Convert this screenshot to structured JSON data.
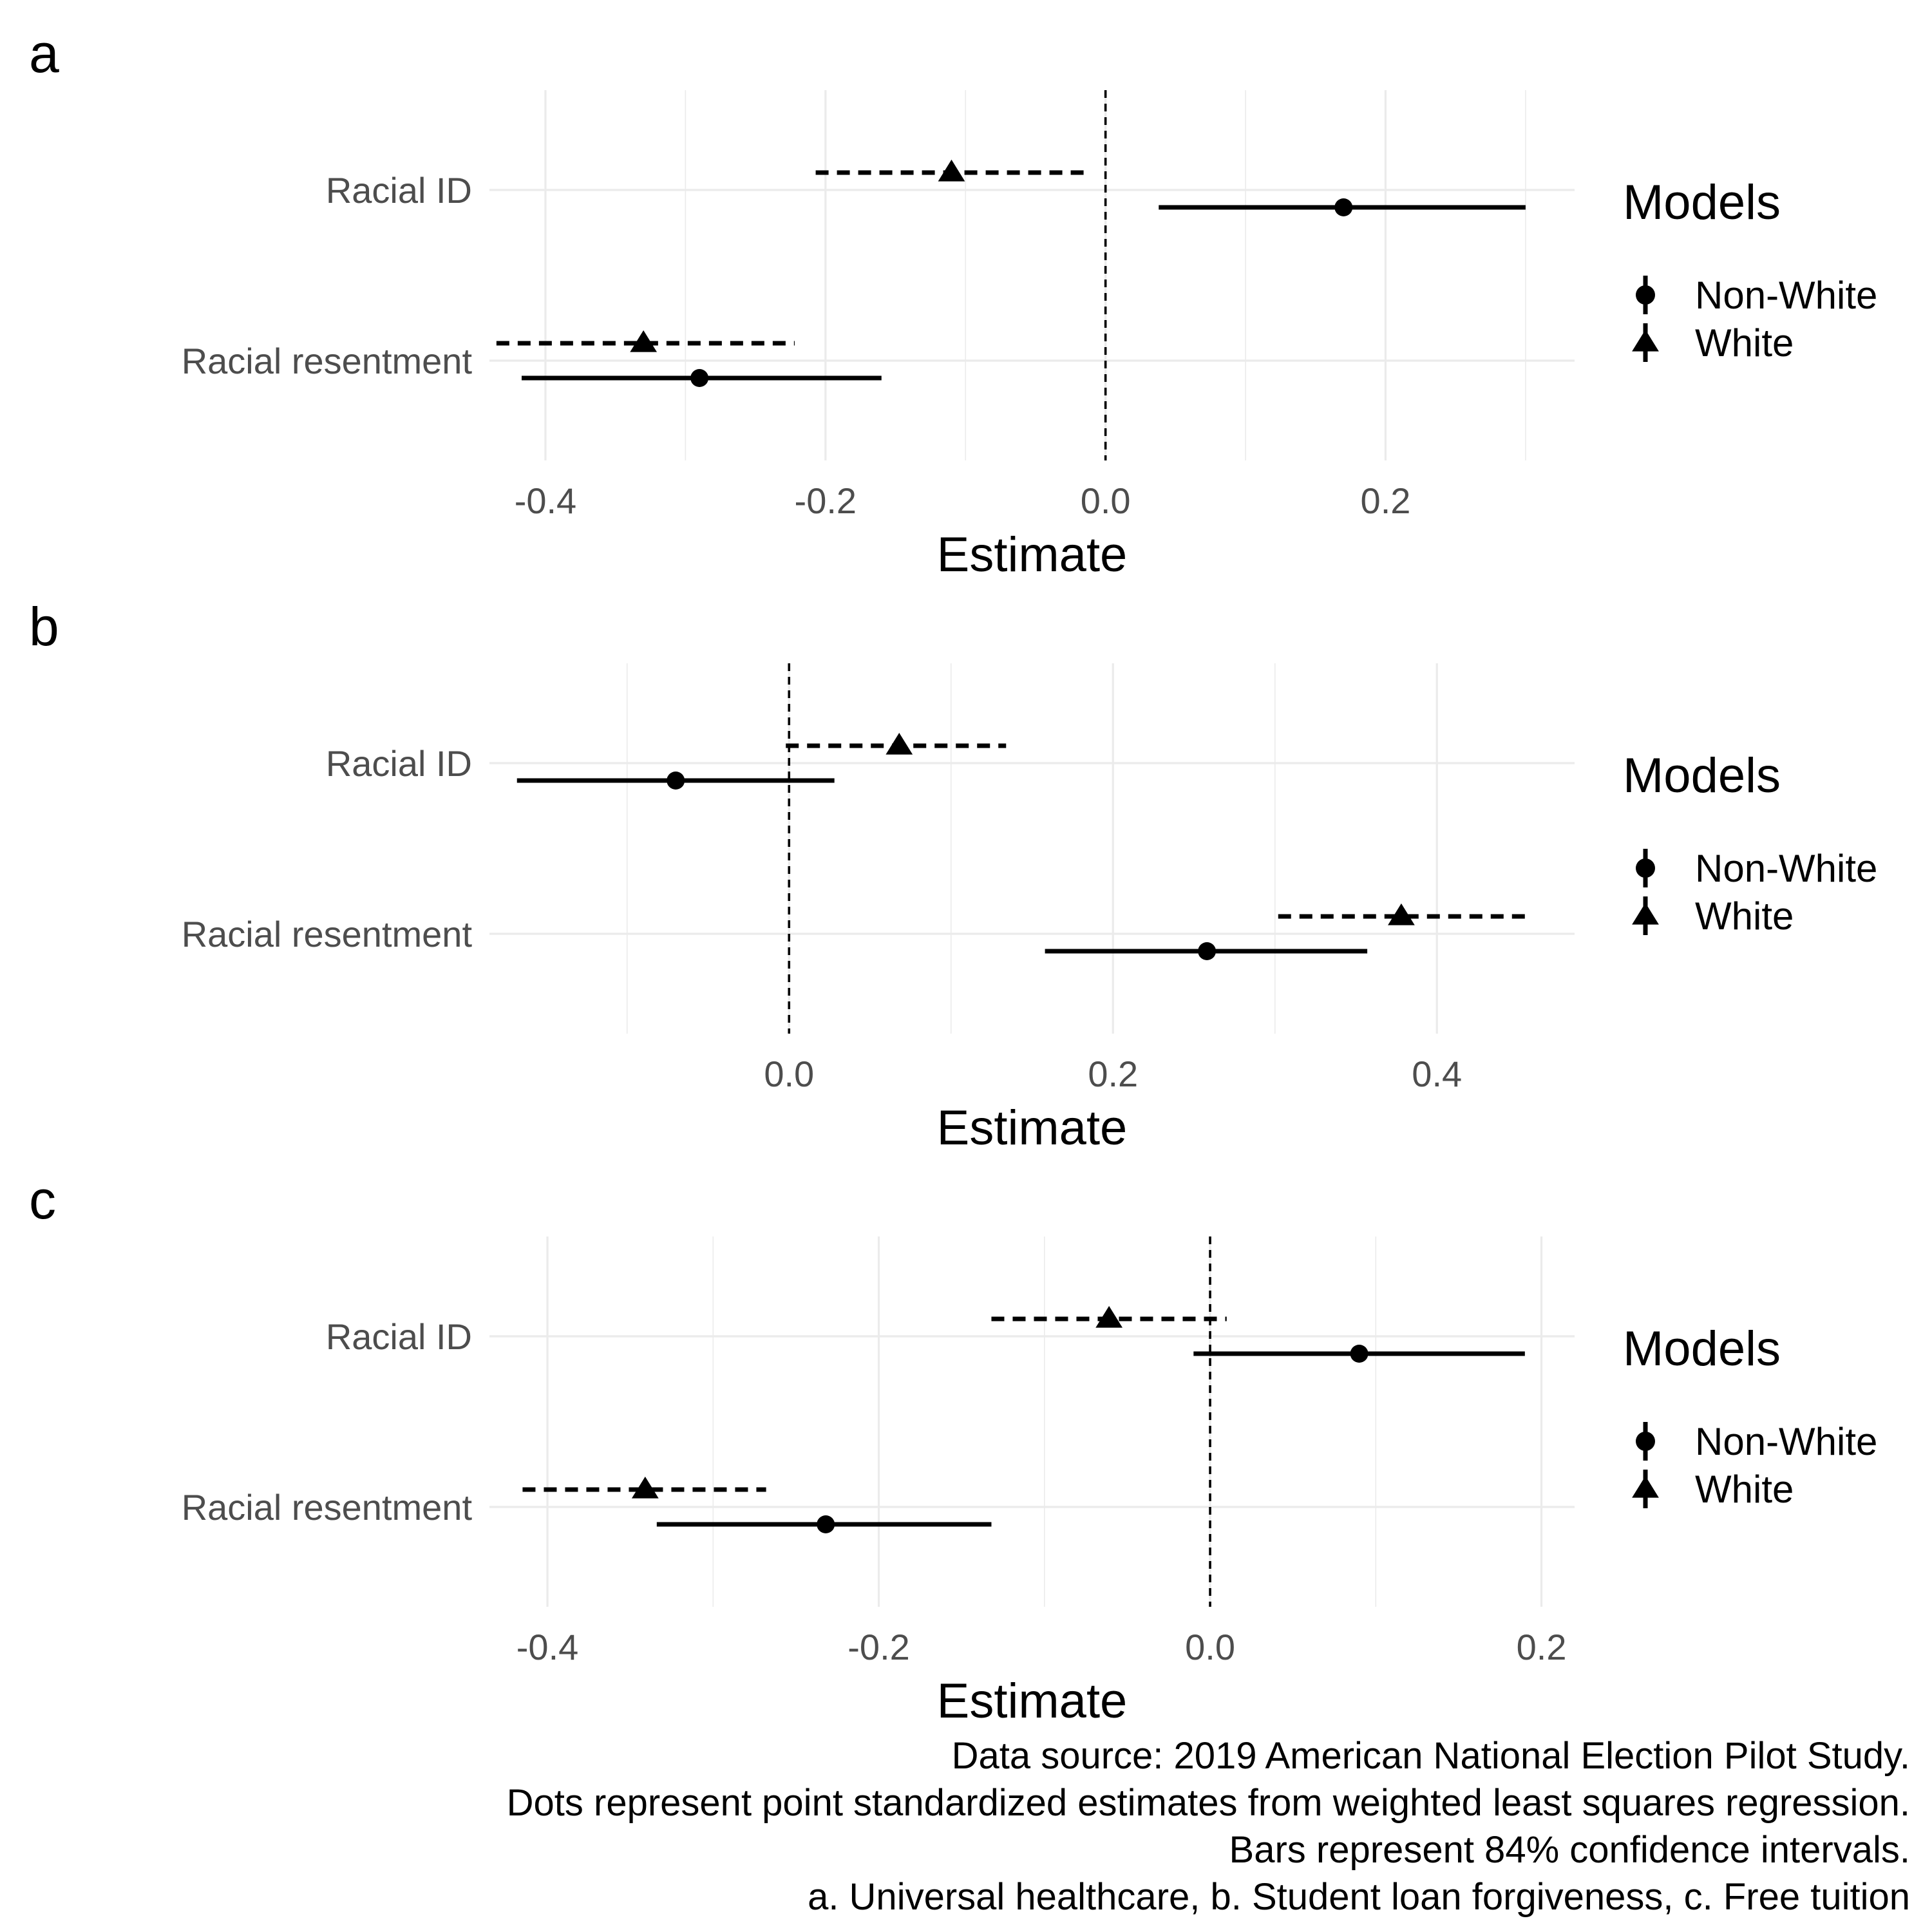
{
  "chart_data": [
    {
      "type": "coefficient-plot",
      "panel_label": "a",
      "xlabel": "Estimate",
      "xticks": [
        "-0.4",
        "-0.2",
        "0.0",
        "0.2"
      ],
      "xlim": [
        -0.44,
        0.335
      ],
      "zero_reference_line": true,
      "grid": true,
      "categories": [
        "Racial ID",
        "Racial resentment"
      ],
      "series": [
        {
          "name": "Non-White",
          "shape": "circle",
          "line": "solid",
          "estimates": [
            0.17,
            -0.29
          ],
          "ci_low": [
            0.038,
            -0.417
          ],
          "ci_high": [
            0.3,
            -0.16
          ]
        },
        {
          "name": "White",
          "shape": "triangle",
          "line": "dashed",
          "estimates": [
            -0.11,
            -0.33
          ],
          "ci_low": [
            -0.207,
            -0.435
          ],
          "ci_high": [
            -0.015,
            -0.222
          ]
        }
      ],
      "legend": {
        "title": "Models",
        "position": "right"
      }
    },
    {
      "type": "coefficient-plot",
      "panel_label": "b",
      "xlabel": "Estimate",
      "xticks": [
        "0.0",
        "0.2",
        "0.4"
      ],
      "xlim": [
        -0.185,
        0.485
      ],
      "zero_reference_line": true,
      "grid": true,
      "categories": [
        "Racial ID",
        "Racial resentment"
      ],
      "series": [
        {
          "name": "Non-White",
          "shape": "circle",
          "line": "solid",
          "estimates": [
            -0.07,
            0.258
          ],
          "ci_low": [
            -0.168,
            0.158
          ],
          "ci_high": [
            0.028,
            0.357
          ]
        },
        {
          "name": "White",
          "shape": "triangle",
          "line": "dashed",
          "estimates": [
            0.068,
            0.378
          ],
          "ci_low": [
            -0.002,
            0.302
          ],
          "ci_high": [
            0.134,
            0.455
          ]
        }
      ],
      "legend": {
        "title": "Models",
        "position": "right"
      }
    },
    {
      "type": "coefficient-plot",
      "panel_label": "c",
      "xlabel": "Estimate",
      "xticks": [
        "-0.4",
        "-0.2",
        "0.0",
        "0.2"
      ],
      "xlim": [
        -0.435,
        0.22
      ],
      "zero_reference_line": true,
      "grid": true,
      "categories": [
        "Racial ID",
        "Racial resentment"
      ],
      "series": [
        {
          "name": "Non-White",
          "shape": "circle",
          "line": "solid",
          "estimates": [
            0.09,
            -0.232
          ],
          "ci_low": [
            -0.01,
            -0.334
          ],
          "ci_high": [
            0.19,
            -0.132
          ]
        },
        {
          "name": "White",
          "shape": "triangle",
          "line": "dashed",
          "estimates": [
            -0.061,
            -0.341
          ],
          "ci_low": [
            -0.132,
            -0.415
          ],
          "ci_high": [
            0.01,
            -0.268
          ]
        }
      ],
      "legend": {
        "title": "Models",
        "position": "right"
      }
    }
  ],
  "caption": [
    "Data source: 2019 American National Election Pilot Study.",
    "Dots represent point standardized estimates from weighted least squares regression.",
    "Bars represent 84% confidence intervals.",
    "a. Universal healthcare, b. Student loan forgiveness, c. Free tuition"
  ]
}
